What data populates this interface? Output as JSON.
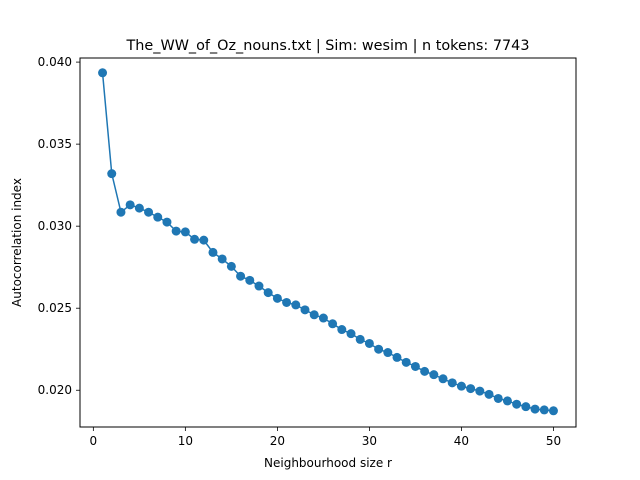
{
  "chart_data": {
    "type": "line",
    "title": "The_WW_of_Oz_nouns.txt | Sim: wesim | n tokens: 7743",
    "xlabel": "Neighbourhood size r",
    "ylabel": "Autocorrelation index",
    "xlim": [
      -1.45,
      52.45
    ],
    "ylim": [
      0.01776,
      0.04025
    ],
    "xticks": [
      0,
      10,
      20,
      30,
      40,
      50
    ],
    "xtick_labels": [
      "0",
      "10",
      "20",
      "30",
      "40",
      "50"
    ],
    "yticks": [
      0.02,
      0.025,
      0.03,
      0.035,
      0.04
    ],
    "ytick_labels": [
      "0.020",
      "0.025",
      "0.030",
      "0.035",
      "0.040"
    ],
    "grid": false,
    "series": [
      {
        "color": "#1f77b4",
        "marker": "circle",
        "x": [
          1,
          2,
          3,
          4,
          5,
          6,
          7,
          8,
          9,
          10,
          11,
          12,
          13,
          14,
          15,
          16,
          17,
          18,
          19,
          20,
          21,
          22,
          23,
          24,
          25,
          26,
          27,
          28,
          29,
          30,
          31,
          32,
          33,
          34,
          35,
          36,
          37,
          38,
          39,
          40,
          41,
          42,
          43,
          44,
          45,
          46,
          47,
          48,
          49,
          50
        ],
        "y": [
          0.03935,
          0.0332,
          0.03085,
          0.0313,
          0.0311,
          0.03085,
          0.03055,
          0.03025,
          0.0297,
          0.02965,
          0.0292,
          0.02915,
          0.0284,
          0.028,
          0.02755,
          0.02695,
          0.0267,
          0.02635,
          0.02595,
          0.0256,
          0.02535,
          0.0252,
          0.0249,
          0.0246,
          0.0244,
          0.02405,
          0.0237,
          0.02345,
          0.0231,
          0.02285,
          0.0225,
          0.0223,
          0.022,
          0.0217,
          0.02145,
          0.02115,
          0.02095,
          0.0207,
          0.02045,
          0.02025,
          0.0201,
          0.01995,
          0.01975,
          0.0195,
          0.01935,
          0.01915,
          0.019,
          0.01885,
          0.0188,
          0.01875
        ]
      }
    ]
  }
}
